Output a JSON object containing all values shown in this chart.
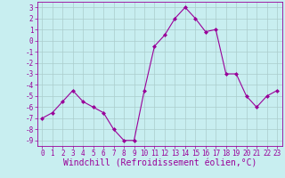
{
  "x": [
    0,
    1,
    2,
    3,
    4,
    5,
    6,
    7,
    8,
    9,
    10,
    11,
    12,
    13,
    14,
    15,
    16,
    17,
    18,
    19,
    20,
    21,
    22,
    23
  ],
  "y": [
    -7.0,
    -6.5,
    -5.5,
    -4.5,
    -5.5,
    -6.0,
    -6.5,
    -8.0,
    -9.0,
    -9.0,
    -4.5,
    -0.5,
    0.5,
    2.0,
    3.0,
    2.0,
    0.8,
    1.0,
    -3.0,
    -3.0,
    -5.0,
    -6.0,
    -5.0,
    -4.5
  ],
  "line_color": "#990099",
  "marker": "D",
  "marker_size": 2,
  "bg_color": "#c8eef0",
  "grid_color": "#aacccc",
  "xlabel": "Windchill (Refroidissement éolien,°C)",
  "xlim": [
    -0.5,
    23.5
  ],
  "ylim": [
    -9.5,
    3.5
  ],
  "yticks": [
    3,
    2,
    1,
    0,
    -1,
    -2,
    -3,
    -4,
    -5,
    -6,
    -7,
    -8,
    -9
  ],
  "xticks": [
    0,
    1,
    2,
    3,
    4,
    5,
    6,
    7,
    8,
    9,
    10,
    11,
    12,
    13,
    14,
    15,
    16,
    17,
    18,
    19,
    20,
    21,
    22,
    23
  ],
  "tick_fontsize": 5.5,
  "xlabel_fontsize": 7.0,
  "linewidth": 0.8
}
